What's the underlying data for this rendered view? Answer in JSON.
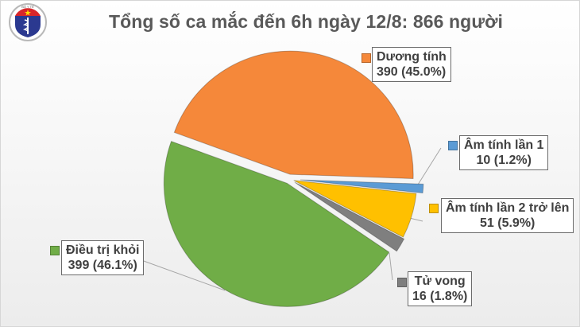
{
  "logo": {
    "top_text": "BỘ Y TẾ",
    "bottom_text": "MINISTRY OF HEALTH"
  },
  "title": "Tổng số ca mắc đến 6h ngày 12/8: 866 người",
  "labels": {
    "positive": {
      "name": "Dương tính",
      "value": "390 (45.0%)"
    },
    "neg1": {
      "name": "Âm tính lần 1",
      "value": "10 (1.2%)"
    },
    "neg2": {
      "name": "Âm tính lần 2 trở lên",
      "value": "51 (5.9%)"
    },
    "death": {
      "name": "Tử vong",
      "value": "16 (1.8%)"
    },
    "recovered": {
      "name": "Điều trị khỏi",
      "value": "399 (46.1%)"
    }
  },
  "colors": {
    "positive": "#F5883A",
    "neg1": "#5B9BD5",
    "neg2": "#FFC000",
    "death": "#7F7F7F",
    "recovered": "#70AD47"
  },
  "chart_data": {
    "type": "pie",
    "title": "Tổng số ca mắc đến 6h ngày 12/8: 866 người",
    "total": 866,
    "categories": [
      "Dương tính",
      "Âm tính lần 1",
      "Âm tính lần 2 trở lên",
      "Tử vong",
      "Điều trị khỏi"
    ],
    "values": [
      390,
      10,
      51,
      16,
      399
    ],
    "percentages": [
      45.0,
      1.2,
      5.9,
      1.8,
      46.1
    ],
    "colors": [
      "#F5883A",
      "#5B9BD5",
      "#FFC000",
      "#7F7F7F",
      "#70AD47"
    ],
    "exploded": true,
    "legend": "data labels with leader lines"
  }
}
